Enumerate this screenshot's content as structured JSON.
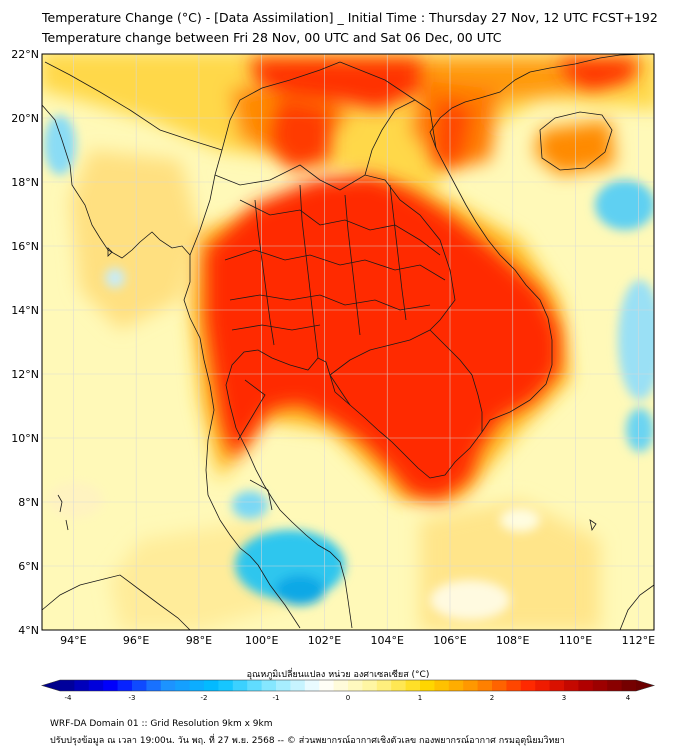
{
  "header": {
    "title": "Temperature Change (°C) - [Data Assimilation] _ Initial Time : Thursday 27 Nov, 12 UTC FCST+192",
    "subtitle": "Temperature change between Fri 28 Nov, 00 UTC and Sat 06 Dec, 00 UTC"
  },
  "map": {
    "lon_range": [
      93,
      112.5
    ],
    "lat_range": [
      4,
      22
    ],
    "lat_ticks": [
      "22°N",
      "20°N",
      "18°N",
      "16°N",
      "14°N",
      "12°N",
      "10°N",
      "8°N",
      "6°N",
      "4°N"
    ],
    "lon_ticks": [
      "94°E",
      "96°E",
      "98°E",
      "100°E",
      "102°E",
      "104°E",
      "106°E",
      "108°E",
      "110°E",
      "112°E"
    ],
    "field": "temperature change (°C)",
    "pattern": "strong warming (+3°C or more) over Thailand, Laos, Cambodia and southern Vietnam; mild warming over sea areas; slight cooling patches in Gulf of Thailand / southern peninsula and east of Vietnam"
  },
  "colorbar": {
    "label": "อุณหภูมิเปลี่ยนแปลง หน่วย องศาเซลเซียส (°C)",
    "min": -4,
    "max": 4,
    "ticks": [
      "-4",
      "-3",
      "-2",
      "-1",
      "0",
      "1",
      "2",
      "3",
      "4"
    ],
    "colors": [
      "#00008b",
      "#0000ff",
      "#1e90ff",
      "#00bfff",
      "#87e8ff",
      "#ffffff",
      "#fff59a",
      "#ffd700",
      "#ff8c00",
      "#ff2200",
      "#b30000",
      "#6b0000"
    ]
  },
  "footer": {
    "line1": "WRF-DA Domain 01 :: Grid Resolution 9km x 9km",
    "line2": "ปรับปรุงข้อมูล ณ เวลา 19:00น. วัน พฤ. ที่ 27 พ.ย. 2568 -- © ส่วนพยากรณ์อากาศเชิงตัวเลข กองพยากรณ์อากาศ กรมอุตุนิยมวิทยา"
  }
}
